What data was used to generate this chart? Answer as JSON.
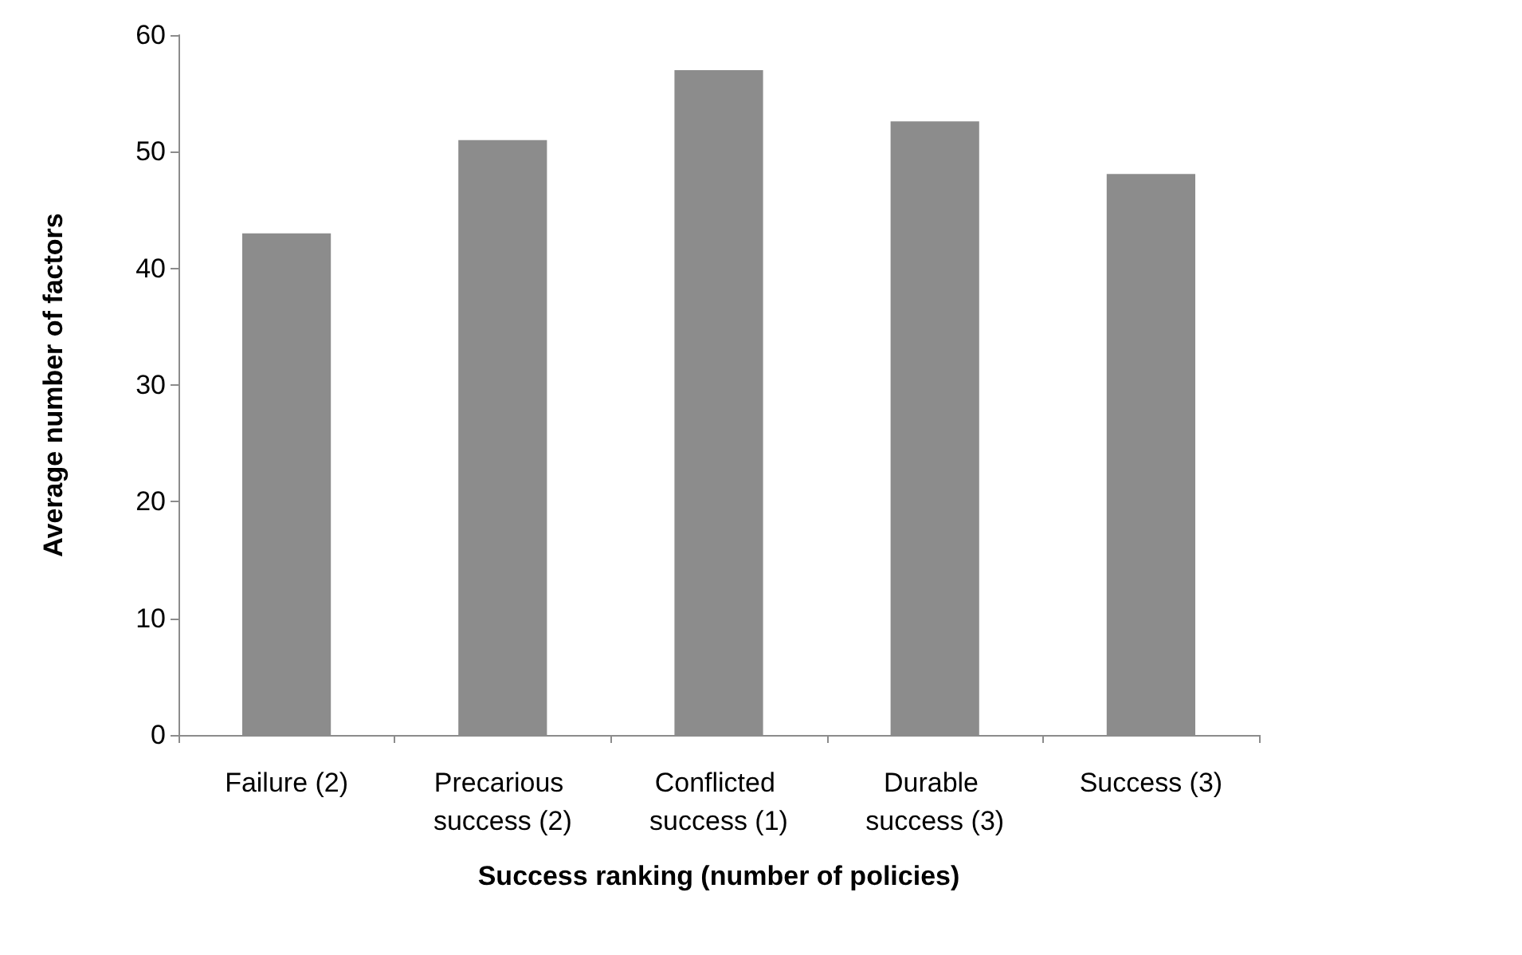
{
  "chart_data": {
    "type": "bar",
    "xlabel": "Success ranking (number of policies)",
    "ylabel": "Average number of factors",
    "categories": [
      "Failure (2)",
      "Precarious success (2)",
      "Conflicted success (1)",
      "Durable success (3)",
      "Success (3)"
    ],
    "values": [
      43,
      51,
      57,
      52.6,
      48.1
    ],
    "color": "#8c8c8c",
    "ylim": [
      0,
      60
    ],
    "yticks": [
      0,
      10,
      20,
      30,
      40,
      50,
      60
    ],
    "grid": false
  }
}
